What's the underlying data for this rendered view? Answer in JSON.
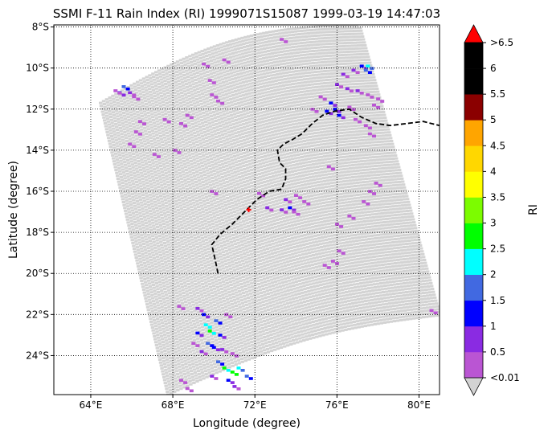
{
  "title": "SSMI F-11 Rain Index (RI) 1999071S15087 1999-03-19 14:47:03",
  "map": {
    "xlabel": "Longitude (degree)",
    "ylabel": "Latitude (degree)",
    "xlim": [
      62.2,
      81.0
    ],
    "ylim": [
      -25.9,
      -7.9
    ],
    "x_ticks": [
      {
        "value": 64,
        "label": "64°E"
      },
      {
        "value": 68,
        "label": "68°E"
      },
      {
        "value": 72,
        "label": "72°E"
      },
      {
        "value": 76,
        "label": "76°E"
      },
      {
        "value": 80,
        "label": "80°E"
      }
    ],
    "y_ticks": [
      {
        "value": -8,
        "label": "8°S"
      },
      {
        "value": -10,
        "label": "10°S"
      },
      {
        "value": -12,
        "label": "12°S"
      },
      {
        "value": -14,
        "label": "14°S"
      },
      {
        "value": -16,
        "label": "16°S"
      },
      {
        "value": -18,
        "label": "18°S"
      },
      {
        "value": -20,
        "label": "20°S"
      },
      {
        "value": -22,
        "label": "22°S"
      },
      {
        "value": -24,
        "label": "24°S"
      }
    ],
    "grid": true,
    "grid_style": "dotted",
    "swath_color": "#d3d3d3",
    "storm_center": {
      "lon": 71.7,
      "lat": -16.9,
      "color": "#ff0000"
    },
    "track": [
      [
        70.2,
        -20.0
      ],
      [
        70.1,
        -19.5
      ],
      [
        69.9,
        -18.6
      ],
      [
        70.3,
        -18.1
      ],
      [
        70.9,
        -17.6
      ],
      [
        71.5,
        -17.0
      ],
      [
        72.1,
        -16.4
      ],
      [
        72.7,
        -16.0
      ],
      [
        73.3,
        -15.9
      ],
      [
        73.5,
        -15.4
      ],
      [
        73.5,
        -14.9
      ],
      [
        73.2,
        -14.6
      ],
      [
        73.1,
        -14.0
      ],
      [
        73.4,
        -13.7
      ],
      [
        73.8,
        -13.5
      ],
      [
        74.3,
        -13.2
      ],
      [
        74.8,
        -12.7
      ],
      [
        75.3,
        -12.3
      ],
      [
        75.9,
        -12.1
      ],
      [
        76.6,
        -12.0
      ],
      [
        77.2,
        -12.4
      ],
      [
        77.9,
        -12.7
      ],
      [
        78.6,
        -12.8
      ],
      [
        79.4,
        -12.7
      ],
      [
        80.2,
        -12.6
      ],
      [
        81.0,
        -12.8
      ]
    ],
    "track_color": "#000000",
    "rain_cells": [
      {
        "lon": 65.6,
        "lat": -10.9,
        "ri": 1.5
      },
      {
        "lon": 65.4,
        "lat": -11.2,
        "ri": 1.0
      },
      {
        "lon": 65.9,
        "lat": -11.2,
        "ri": 0.7
      },
      {
        "lon": 65.2,
        "lat": -11.1,
        "ri": 0.3
      },
      {
        "lon": 66.1,
        "lat": -11.4,
        "ri": 0.3
      },
      {
        "lon": 69.5,
        "lat": -9.8,
        "ri": 0.2
      },
      {
        "lon": 69.8,
        "lat": -10.6,
        "ri": 0.2
      },
      {
        "lon": 69.9,
        "lat": -11.3,
        "ri": 0.2
      },
      {
        "lon": 70.2,
        "lat": -11.6,
        "ri": 0.2
      },
      {
        "lon": 66.4,
        "lat": -12.6,
        "ri": 0.2
      },
      {
        "lon": 66.2,
        "lat": -13.1,
        "ri": 0.2
      },
      {
        "lon": 67.6,
        "lat": -12.5,
        "ri": 0.2
      },
      {
        "lon": 68.7,
        "lat": -12.3,
        "ri": 0.2
      },
      {
        "lon": 68.4,
        "lat": -12.7,
        "ri": 0.2
      },
      {
        "lon": 67.1,
        "lat": -14.2,
        "ri": 0.2
      },
      {
        "lon": 65.9,
        "lat": -13.7,
        "ri": 0.2
      },
      {
        "lon": 68.1,
        "lat": -14.0,
        "ri": 0.2
      },
      {
        "lon": 73.3,
        "lat": -8.6,
        "ri": 0.2
      },
      {
        "lon": 70.5,
        "lat": -9.6,
        "ri": 0.2
      },
      {
        "lon": 69.9,
        "lat": -16.0,
        "ri": 0.3
      },
      {
        "lon": 72.2,
        "lat": -16.1,
        "ri": 0.4
      },
      {
        "lon": 72.6,
        "lat": -16.8,
        "ri": 0.7
      },
      {
        "lon": 73.5,
        "lat": -16.4,
        "ri": 0.7
      },
      {
        "lon": 74.0,
        "lat": -16.2,
        "ri": 0.4
      },
      {
        "lon": 73.7,
        "lat": -16.8,
        "ri": 1.2
      },
      {
        "lon": 73.3,
        "lat": -16.9,
        "ri": 0.7
      },
      {
        "lon": 73.9,
        "lat": -17.0,
        "ri": 0.4
      },
      {
        "lon": 74.4,
        "lat": -16.5,
        "ri": 0.2
      },
      {
        "lon": 76.3,
        "lat": -10.3,
        "ri": 0.7
      },
      {
        "lon": 76.8,
        "lat": -10.1,
        "ri": 0.7
      },
      {
        "lon": 77.2,
        "lat": -9.9,
        "ri": 1.2
      },
      {
        "lon": 77.4,
        "lat": -10.1,
        "ri": 1.7
      },
      {
        "lon": 77.5,
        "lat": -9.9,
        "ri": 2.2
      },
      {
        "lon": 76.0,
        "lat": -10.8,
        "ri": 0.6
      },
      {
        "lon": 76.5,
        "lat": -11.0,
        "ri": 0.7
      },
      {
        "lon": 77.0,
        "lat": -11.1,
        "ri": 0.6
      },
      {
        "lon": 77.5,
        "lat": -11.3,
        "ri": 0.4
      },
      {
        "lon": 78.0,
        "lat": -11.5,
        "ri": 0.3
      },
      {
        "lon": 75.2,
        "lat": -11.4,
        "ri": 0.4
      },
      {
        "lon": 75.7,
        "lat": -11.7,
        "ri": 1.0
      },
      {
        "lon": 75.9,
        "lat": -12.0,
        "ri": 1.2
      },
      {
        "lon": 76.1,
        "lat": -12.3,
        "ri": 1.4
      },
      {
        "lon": 75.5,
        "lat": -12.1,
        "ri": 1.1
      },
      {
        "lon": 76.6,
        "lat": -11.9,
        "ri": 0.4
      },
      {
        "lon": 76.9,
        "lat": -12.5,
        "ri": 0.2
      },
      {
        "lon": 77.4,
        "lat": -12.8,
        "ri": 0.2
      },
      {
        "lon": 77.6,
        "lat": -13.2,
        "ri": 0.2
      },
      {
        "lon": 74.8,
        "lat": -12.0,
        "ri": 0.3
      },
      {
        "lon": 77.8,
        "lat": -11.8,
        "ri": 0.3
      },
      {
        "lon": 75.6,
        "lat": -14.8,
        "ri": 0.2
      },
      {
        "lon": 77.9,
        "lat": -15.6,
        "ri": 0.2
      },
      {
        "lon": 77.6,
        "lat": -16.0,
        "ri": 0.2
      },
      {
        "lon": 77.3,
        "lat": -16.5,
        "ri": 0.2
      },
      {
        "lon": 76.6,
        "lat": -17.2,
        "ri": 0.2
      },
      {
        "lon": 76.0,
        "lat": -17.6,
        "ri": 0.2
      },
      {
        "lon": 75.8,
        "lat": -19.4,
        "ri": 0.2
      },
      {
        "lon": 75.4,
        "lat": -19.6,
        "ri": 0.2
      },
      {
        "lon": 76.1,
        "lat": -18.9,
        "ri": 0.2
      },
      {
        "lon": 68.3,
        "lat": -21.6,
        "ri": 0.2
      },
      {
        "lon": 69.2,
        "lat": -21.7,
        "ri": 0.5
      },
      {
        "lon": 69.5,
        "lat": -22.0,
        "ri": 1.2
      },
      {
        "lon": 69.6,
        "lat": -22.5,
        "ri": 2.4
      },
      {
        "lon": 69.8,
        "lat": -22.8,
        "ri": 2.8
      },
      {
        "lon": 70.1,
        "lat": -22.3,
        "ri": 1.6
      },
      {
        "lon": 69.2,
        "lat": -22.9,
        "ri": 1.3
      },
      {
        "lon": 70.3,
        "lat": -23.0,
        "ri": 1.1
      },
      {
        "lon": 69.7,
        "lat": -23.4,
        "ri": 1.8
      },
      {
        "lon": 70.0,
        "lat": -23.6,
        "ri": 1.4
      },
      {
        "lon": 70.4,
        "lat": -23.7,
        "ri": 0.8
      },
      {
        "lon": 69.4,
        "lat": -23.8,
        "ri": 0.6
      },
      {
        "lon": 69.0,
        "lat": -23.4,
        "ri": 0.4
      },
      {
        "lon": 70.2,
        "lat": -24.3,
        "ri": 1.6
      },
      {
        "lon": 70.5,
        "lat": -24.6,
        "ri": 2.7
      },
      {
        "lon": 70.9,
        "lat": -24.8,
        "ri": 2.9
      },
      {
        "lon": 71.2,
        "lat": -24.6,
        "ri": 2.2
      },
      {
        "lon": 71.6,
        "lat": -25.0,
        "ri": 1.8
      },
      {
        "lon": 70.7,
        "lat": -25.2,
        "ri": 1.1
      },
      {
        "lon": 71.0,
        "lat": -25.5,
        "ri": 0.6
      },
      {
        "lon": 69.9,
        "lat": -25.0,
        "ri": 0.5
      },
      {
        "lon": 70.6,
        "lat": -22.0,
        "ri": 0.3
      },
      {
        "lon": 70.9,
        "lat": -23.9,
        "ri": 0.3
      },
      {
        "lon": 68.4,
        "lat": -25.2,
        "ri": 0.2
      },
      {
        "lon": 68.7,
        "lat": -25.6,
        "ri": 0.2
      },
      {
        "lon": 80.6,
        "lat": -21.8,
        "ri": 0.2
      }
    ]
  },
  "colorbar": {
    "label": "RI",
    "under_color": "#d3d3d3",
    "over_color": "#ff0000",
    "bins": [
      {
        "color": "#ba55d3",
        "label": "<0.01"
      },
      {
        "color": "#8a2be2",
        "label": "0.5"
      },
      {
        "color": "#0000ff",
        "label": "1"
      },
      {
        "color": "#4169e1",
        "label": "1.5"
      },
      {
        "color": "#00ffff",
        "label": "2"
      },
      {
        "color": "#00ff00",
        "label": "2.5"
      },
      {
        "color": "#7cfc00",
        "label": "3"
      },
      {
        "color": "#ffff00",
        "label": "3.5"
      },
      {
        "color": "#ffd700",
        "label": "4"
      },
      {
        "color": "#ffa500",
        "label": "4.5"
      },
      {
        "color": "#8b0000",
        "label": "5"
      },
      {
        "color": "#000000",
        "label": "5.5"
      },
      {
        "color": "#000000",
        "label": "6"
      }
    ],
    "top_label": ">6.5"
  }
}
